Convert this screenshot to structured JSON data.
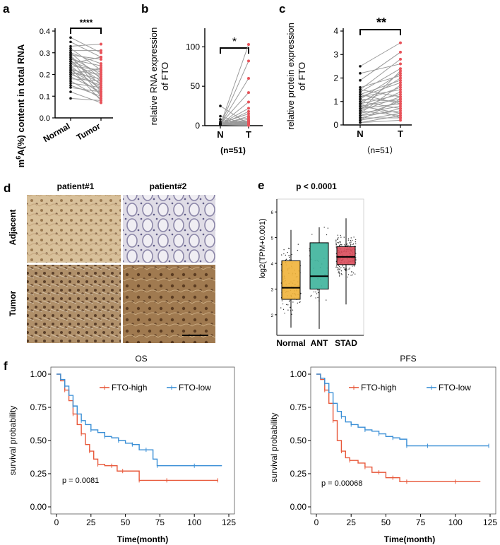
{
  "panel_letters": {
    "a": "a",
    "b": "b",
    "c": "c",
    "d": "d",
    "e": "e",
    "f": "f"
  },
  "colors": {
    "normal_pt": "#111111",
    "tumor_pt": "#e8535a",
    "line": "#9a9a9a",
    "box_normal": "#f0b23a",
    "box_ant": "#3db39b",
    "box_stad": "#d84b5a",
    "km_high": "#e8583a",
    "km_low": "#3a8fd6"
  },
  "chart_data": [
    {
      "id": "a",
      "type": "scatter",
      "title": "",
      "ylabel": "m6A(%) content in total RNA",
      "ylabel_base": "m",
      "ylabel_sup": "6",
      "ylabel_rest": "A(%) content in total RNA",
      "categories": [
        "Normal",
        "Tumor"
      ],
      "yticks": [
        "0.0",
        "0.1",
        "0.2",
        "0.3",
        "0.4"
      ],
      "ylim": [
        0,
        0.4
      ],
      "significance": "****",
      "paired_values": [
        [
          0.37,
          0.3
        ],
        [
          0.35,
          0.28
        ],
        [
          0.33,
          0.34
        ],
        [
          0.32,
          0.22
        ],
        [
          0.31,
          0.31
        ],
        [
          0.3,
          0.18
        ],
        [
          0.3,
          0.25
        ],
        [
          0.29,
          0.12
        ],
        [
          0.29,
          0.27
        ],
        [
          0.28,
          0.2
        ],
        [
          0.28,
          0.15
        ],
        [
          0.27,
          0.24
        ],
        [
          0.27,
          0.1
        ],
        [
          0.26,
          0.21
        ],
        [
          0.26,
          0.17
        ],
        [
          0.25,
          0.28
        ],
        [
          0.25,
          0.19
        ],
        [
          0.24,
          0.13
        ],
        [
          0.24,
          0.22
        ],
        [
          0.23,
          0.16
        ],
        [
          0.23,
          0.08
        ],
        [
          0.22,
          0.2
        ],
        [
          0.22,
          0.14
        ],
        [
          0.21,
          0.18
        ],
        [
          0.21,
          0.11
        ],
        [
          0.2,
          0.23
        ],
        [
          0.2,
          0.15
        ],
        [
          0.19,
          0.12
        ],
        [
          0.18,
          0.17
        ],
        [
          0.17,
          0.09
        ],
        [
          0.16,
          0.14
        ],
        [
          0.15,
          0.1
        ],
        [
          0.14,
          0.12
        ],
        [
          0.12,
          0.07
        ],
        [
          0.09,
          0.08
        ]
      ]
    },
    {
      "id": "b",
      "type": "scatter",
      "ylabel_line1": "relative RNA expression",
      "ylabel_line2": "of FTO",
      "categories": [
        "N",
        "T"
      ],
      "yticks": [
        "0",
        "50",
        "100"
      ],
      "ylim": [
        0,
        120
      ],
      "significance": "*",
      "n_label": "(n=51)",
      "paired_values": [
        [
          1,
          103
        ],
        [
          1,
          82
        ],
        [
          1.5,
          60
        ],
        [
          2,
          42
        ],
        [
          1,
          30
        ],
        [
          2,
          22
        ],
        [
          1,
          18
        ],
        [
          3,
          15
        ],
        [
          1,
          12
        ],
        [
          2,
          10
        ],
        [
          1,
          8
        ],
        [
          4,
          6
        ],
        [
          1,
          5
        ],
        [
          2,
          4
        ],
        [
          1,
          3
        ],
        [
          3,
          2
        ],
        [
          1,
          2
        ],
        [
          2,
          1
        ],
        [
          1,
          1
        ],
        [
          5,
          3
        ],
        [
          1,
          0.5
        ],
        [
          2,
          0.5
        ],
        [
          1,
          1.5
        ],
        [
          8,
          2
        ],
        [
          3,
          0.8
        ],
        [
          1,
          0.3
        ],
        [
          2,
          6
        ],
        [
          1,
          4
        ],
        [
          12,
          1
        ],
        [
          25,
          2
        ]
      ]
    },
    {
      "id": "c",
      "type": "scatter",
      "ylabel_line1": "relative protein expression",
      "ylabel_line2": "of FTO",
      "categories": [
        "N",
        "T"
      ],
      "yticks": [
        "0",
        "1",
        "2",
        "3",
        "4"
      ],
      "ylim": [
        0,
        4
      ],
      "significance": "**",
      "n_label": "（n=51）",
      "paired_values": [
        [
          2.5,
          3.5
        ],
        [
          2.2,
          2.6
        ],
        [
          1.9,
          3.1
        ],
        [
          1.6,
          2.1
        ],
        [
          1.5,
          1.2
        ],
        [
          1.4,
          2.4
        ],
        [
          1.3,
          0.9
        ],
        [
          1.2,
          1.8
        ],
        [
          1.2,
          1.5
        ],
        [
          1.1,
          2.2
        ],
        [
          1.1,
          1.0
        ],
        [
          1.0,
          1.6
        ],
        [
          1.0,
          0.7
        ],
        [
          0.9,
          1.3
        ],
        [
          0.9,
          2.0
        ],
        [
          0.8,
          1.1
        ],
        [
          0.8,
          0.5
        ],
        [
          0.7,
          1.4
        ],
        [
          0.7,
          0.9
        ],
        [
          0.6,
          1.2
        ],
        [
          0.6,
          0.4
        ],
        [
          0.5,
          0.8
        ],
        [
          0.5,
          1.7
        ],
        [
          0.4,
          0.6
        ],
        [
          0.4,
          1.0
        ],
        [
          0.3,
          0.3
        ],
        [
          0.3,
          0.7
        ],
        [
          0.2,
          0.5
        ],
        [
          0.2,
          1.1
        ],
        [
          0.1,
          0.2
        ],
        [
          0.1,
          0.4
        ],
        [
          1.5,
          2.8
        ],
        [
          0.9,
          0.3
        ],
        [
          1.3,
          1.9
        ],
        [
          0.6,
          2.3
        ]
      ]
    },
    {
      "id": "e",
      "type": "box",
      "title": "p < 0.0001",
      "ylabel": "log2(TPM+0.001)",
      "categories": [
        "Normal",
        "ANT",
        "STAD"
      ],
      "yticks": [
        "2",
        "3",
        "4",
        "5",
        "6"
      ],
      "ylim": [
        1.2,
        6.5
      ],
      "boxes": [
        {
          "name": "Normal",
          "min": 1.5,
          "q1": 2.6,
          "median": 3.05,
          "q3": 4.1,
          "max": 5.3
        },
        {
          "name": "ANT",
          "min": 1.45,
          "q1": 3.0,
          "median": 3.5,
          "q3": 4.8,
          "max": 5.4
        },
        {
          "name": "STAD",
          "min": 2.4,
          "q1": 3.95,
          "median": 4.25,
          "q3": 4.65,
          "max": 5.75
        }
      ]
    },
    {
      "id": "f_os",
      "type": "line",
      "title": "OS",
      "xlabel": "Time(month)",
      "ylabel": "survival probability",
      "xticks": [
        "0",
        "25",
        "50",
        "75",
        "100",
        "125"
      ],
      "xlim": [
        0,
        125
      ],
      "yticks": [
        "0.00",
        "0.25",
        "0.50",
        "0.75",
        "1.00"
      ],
      "ylim": [
        0,
        1
      ],
      "pvalue": "p = 0.0081",
      "series": [
        {
          "name": "FTO-high",
          "x": [
            0,
            3,
            6,
            9,
            12,
            15,
            18,
            21,
            24,
            27,
            30,
            35,
            40,
            44,
            48,
            55,
            60,
            65,
            80,
            100,
            117
          ],
          "y": [
            1,
            0.95,
            0.88,
            0.8,
            0.7,
            0.62,
            0.55,
            0.47,
            0.42,
            0.36,
            0.32,
            0.31,
            0.31,
            0.27,
            0.27,
            0.27,
            0.2,
            0.2,
            0.2,
            0.2,
            0.2
          ]
        },
        {
          "name": "FTO-low",
          "x": [
            0,
            3,
            6,
            9,
            12,
            15,
            18,
            21,
            25,
            30,
            35,
            40,
            45,
            50,
            55,
            60,
            65,
            70,
            73,
            80,
            100,
            120
          ],
          "y": [
            1,
            0.96,
            0.91,
            0.84,
            0.76,
            0.7,
            0.65,
            0.62,
            0.58,
            0.56,
            0.53,
            0.52,
            0.5,
            0.48,
            0.47,
            0.43,
            0.43,
            0.36,
            0.31,
            0.31,
            0.31,
            0.31
          ]
        }
      ]
    },
    {
      "id": "f_pfs",
      "type": "line",
      "title": "PFS",
      "xlabel": "Time(month)",
      "ylabel": "survival probability",
      "xticks": [
        "0",
        "25",
        "50",
        "75",
        "100",
        "125"
      ],
      "xlim": [
        0,
        125
      ],
      "yticks": [
        "0.00",
        "0.25",
        "0.50",
        "0.75",
        "1.00"
      ],
      "ylim": [
        0,
        1
      ],
      "pvalue": "p = 0.00068",
      "series": [
        {
          "name": "FTO-high",
          "x": [
            0,
            3,
            6,
            9,
            12,
            15,
            18,
            21,
            24,
            30,
            35,
            40,
            45,
            50,
            55,
            60,
            65,
            75,
            100,
            118
          ],
          "y": [
            1,
            0.96,
            0.88,
            0.78,
            0.65,
            0.5,
            0.42,
            0.37,
            0.35,
            0.33,
            0.3,
            0.26,
            0.26,
            0.22,
            0.22,
            0.19,
            0.19,
            0.19,
            0.19,
            0.19
          ]
        },
        {
          "name": "FTO-low",
          "x": [
            0,
            3,
            6,
            9,
            12,
            15,
            18,
            21,
            25,
            30,
            35,
            40,
            45,
            50,
            55,
            60,
            65,
            70,
            80,
            100,
            124
          ],
          "y": [
            1,
            0.97,
            0.93,
            0.86,
            0.78,
            0.72,
            0.68,
            0.64,
            0.62,
            0.6,
            0.58,
            0.57,
            0.55,
            0.53,
            0.52,
            0.51,
            0.46,
            0.46,
            0.46,
            0.46,
            0.46
          ]
        }
      ]
    }
  ],
  "panel_d": {
    "col1": "patient#1",
    "col2": "patient#2",
    "row1": "Adjacent",
    "row2": "Tumor"
  }
}
